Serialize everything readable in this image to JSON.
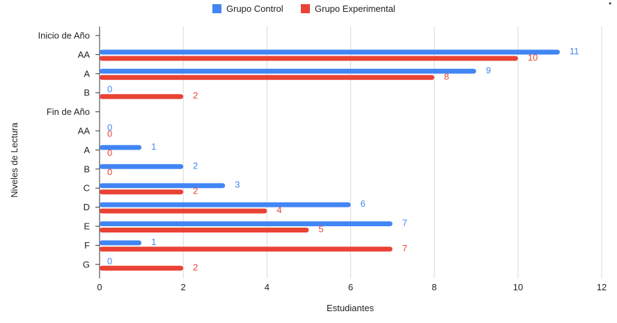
{
  "chart_data": {
    "type": "bar",
    "orientation": "horizontal",
    "categories": [
      "Inicio de Año",
      "AA",
      "A",
      "B",
      "Fin de Año",
      "AA",
      "A",
      "B",
      "C",
      "D",
      "E",
      "F",
      "G"
    ],
    "series": [
      {
        "name": "Grupo Control",
        "color": "#4285f4",
        "values": [
          null,
          11,
          9,
          0,
          null,
          0,
          1,
          2,
          3,
          6,
          7,
          1,
          0
        ]
      },
      {
        "name": "Grupo Experimental",
        "color": "#ea4335",
        "values": [
          null,
          10,
          8,
          2,
          null,
          0,
          0,
          0,
          2,
          4,
          5,
          7,
          2
        ]
      }
    ],
    "xlabel": "Estudiantes",
    "ylabel": "Niveles de Lectura",
    "xlim": [
      0,
      12
    ],
    "xticks": [
      0,
      2,
      4,
      6,
      8,
      10,
      12
    ],
    "grid": true,
    "data_labels": true,
    "legend_position": "top"
  },
  "menu_icon": "more-vert-icon"
}
